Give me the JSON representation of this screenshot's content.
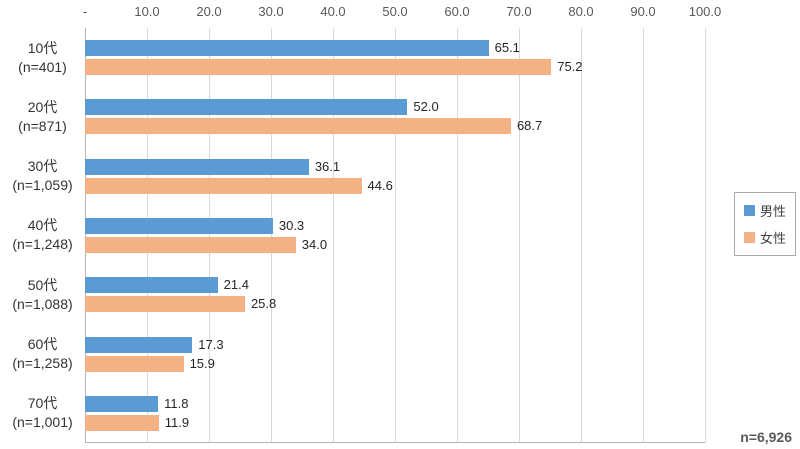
{
  "chart_data": {
    "type": "bar",
    "orientation": "horizontal",
    "title": "",
    "xlabel": "",
    "ylabel": "",
    "xlim": [
      0,
      100
    ],
    "grid": true,
    "legend_position": "right",
    "note": "n=6,926",
    "x_ticks": [
      {
        "label": "-",
        "value": 0
      },
      {
        "label": "10.0",
        "value": 10
      },
      {
        "label": "20.0",
        "value": 20
      },
      {
        "label": "30.0",
        "value": 30
      },
      {
        "label": "40.0",
        "value": 40
      },
      {
        "label": "50.0",
        "value": 50
      },
      {
        "label": "60.0",
        "value": 60
      },
      {
        "label": "70.0",
        "value": 70
      },
      {
        "label": "80.0",
        "value": 80
      },
      {
        "label": "90.0",
        "value": 90
      },
      {
        "label": "100.0",
        "value": 100
      }
    ],
    "categories": [
      {
        "label": "10代",
        "n_label": "(n=401)"
      },
      {
        "label": "20代",
        "n_label": "(n=871)"
      },
      {
        "label": "30代",
        "n_label": "(n=1,059)"
      },
      {
        "label": "40代",
        "n_label": "(n=1,248)"
      },
      {
        "label": "50代",
        "n_label": "(n=1,088)"
      },
      {
        "label": "60代",
        "n_label": "(n=1,258)"
      },
      {
        "label": "70代",
        "n_label": "(n=1,001)"
      }
    ],
    "series": [
      {
        "name": "男性",
        "color": "#5B9BD5",
        "values": [
          65.1,
          52.0,
          36.1,
          30.3,
          21.4,
          17.3,
          11.8
        ]
      },
      {
        "name": "女性",
        "color": "#F4B183",
        "values": [
          75.2,
          68.7,
          44.6,
          34.0,
          25.8,
          15.9,
          11.9
        ]
      }
    ]
  }
}
